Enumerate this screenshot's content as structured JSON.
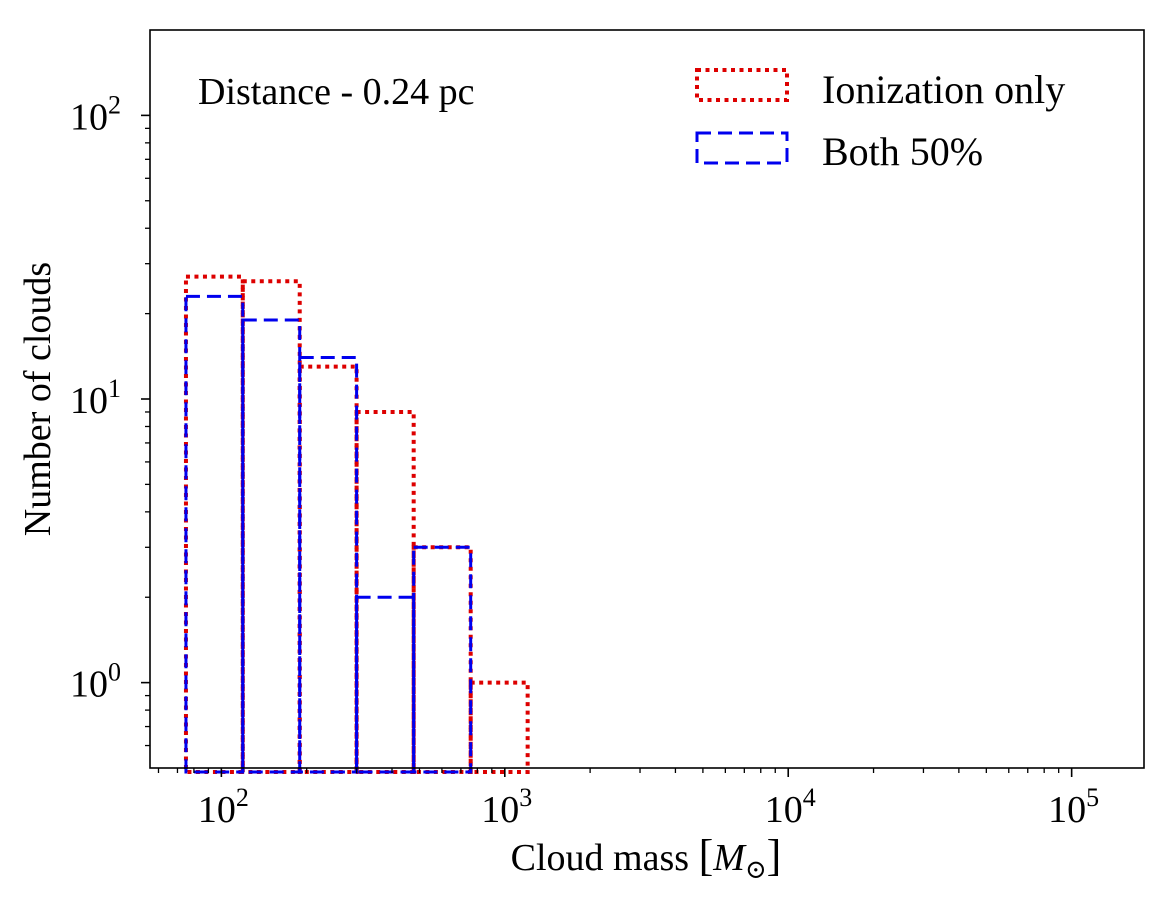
{
  "chart_data": {
    "type": "histogram",
    "scale": {
      "x": "log",
      "y": "log"
    },
    "xlim": [
      56,
      180000
    ],
    "ylim": [
      0.5,
      200
    ],
    "xlabel_text": "Cloud mass ",
    "xlabel_symbol": "M",
    "xlabel_subscript": "⊙",
    "ylabel": "Number of clouds",
    "annotation": "Distance - 0.24 pc",
    "x_ticks": [
      {
        "value": 100,
        "base": "10",
        "exp": "2"
      },
      {
        "value": 1000,
        "base": "10",
        "exp": "3"
      },
      {
        "value": 10000,
        "base": "10",
        "exp": "4"
      },
      {
        "value": 100000,
        "base": "10",
        "exp": "5"
      }
    ],
    "y_ticks": [
      {
        "value": 1,
        "base": "10",
        "exp": "0"
      },
      {
        "value": 10,
        "base": "10",
        "exp": "1"
      },
      {
        "value": 100,
        "base": "10",
        "exp": "2"
      }
    ],
    "bin_edges": [
      75,
      119,
      189,
      300,
      477,
      758,
      1204
    ],
    "series": [
      {
        "name": "Ionization only",
        "color": "#dd0000",
        "style": "dotted",
        "values": [
          27,
          26,
          13,
          9,
          3,
          1
        ]
      },
      {
        "name": "Both 50%",
        "color": "#0000ee",
        "style": "dashed",
        "values": [
          23,
          19,
          14,
          2,
          3,
          0
        ]
      }
    ],
    "legend_position": "top-right"
  }
}
